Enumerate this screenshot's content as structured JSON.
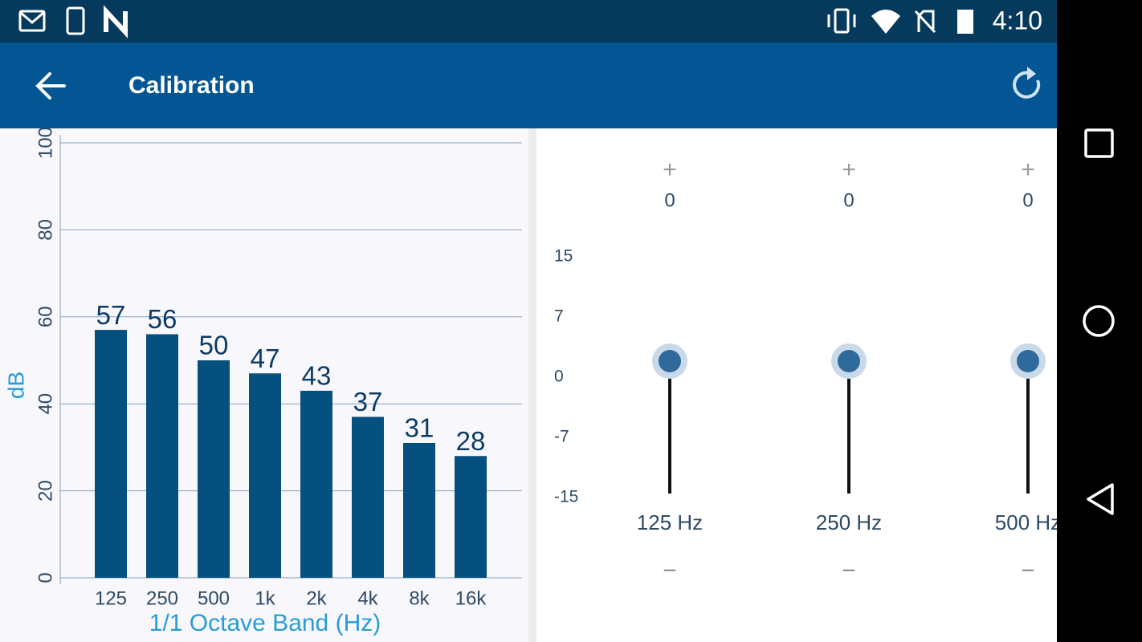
{
  "status_bar": {
    "time": "4:10"
  },
  "app_bar": {
    "title": "Calibration"
  },
  "chart_data": {
    "type": "bar",
    "categories": [
      "125",
      "250",
      "500",
      "1k",
      "2k",
      "4k",
      "8k",
      "16k"
    ],
    "values": [
      57,
      56,
      50,
      47,
      43,
      37,
      31,
      28
    ],
    "color": "#05507f",
    "ylim": [
      0,
      100
    ],
    "yticks": [
      0,
      20,
      40,
      60,
      80,
      100
    ],
    "grid": true,
    "y_label": "dB",
    "x_label": "1/1 Octave Band (Hz)"
  },
  "equalizer": {
    "range": [
      -15,
      15
    ],
    "scale": [
      15,
      7,
      0,
      -7,
      -15
    ],
    "bands": [
      {
        "label": "125 Hz",
        "value": 0,
        "increase": "+",
        "decrease": "–"
      },
      {
        "label": "250 Hz",
        "value": 0,
        "increase": "+",
        "decrease": "–"
      },
      {
        "label": "500 Hz",
        "value": 0,
        "increase": "+",
        "decrease": "–"
      }
    ]
  }
}
